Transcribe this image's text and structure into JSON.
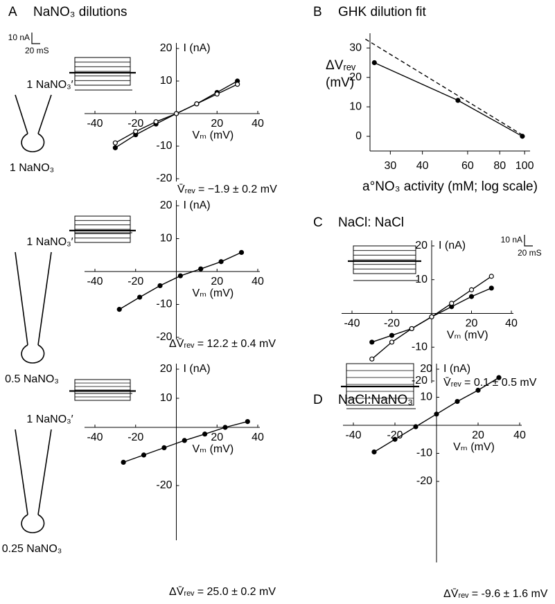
{
  "chart_data": [
    {
      "type": "line",
      "panel": "A",
      "title": "NaNO₃ dilutions",
      "scale_bar": [
        "10 nA",
        "20 mS"
      ],
      "labels": [
        "1 NaNO₃′",
        "1 NaNO₃"
      ],
      "xlabel": "Vₘ (mV)",
      "ylabel": "I (nA)",
      "annotation": "V̄ᵣₑᵥ = −1.9 ± 0.2 mV",
      "xlim": [
        -40,
        40
      ],
      "ylim": [
        -20,
        20
      ],
      "xticks": [
        -40,
        -20,
        20,
        40
      ],
      "yticks": [
        20,
        10,
        -10,
        -20
      ],
      "series": [
        {
          "marker": "filled",
          "color": "#000000",
          "x": [
            -30,
            -20,
            -10,
            0,
            10,
            20,
            30
          ],
          "values": [
            -10.5,
            -6.5,
            -3.2,
            0,
            3,
            6.5,
            10
          ]
        },
        {
          "marker": "open",
          "color": "#000000",
          "x": [
            -30,
            -20,
            -10,
            0,
            10,
            20,
            30
          ],
          "values": [
            -9,
            -5.5,
            -2.5,
            0,
            3,
            6,
            9
          ]
        }
      ]
    },
    {
      "type": "line",
      "labels": [
        "1 NaNO₃′",
        "0.5 NaNO₃"
      ],
      "xlabel": "Vₘ (mV)",
      "ylabel": "I (nA)",
      "annotation": "ΔV̄ᵣₑᵥ = 12.2 ± 0.4 mV",
      "xlim": [
        -40,
        40
      ],
      "ylim": [
        -20,
        20
      ],
      "xticks": [
        -40,
        -20,
        20,
        40
      ],
      "yticks": [
        20,
        10,
        -10,
        -20
      ],
      "series": [
        {
          "marker": "filled",
          "color": "#000000",
          "x": [
            -28,
            -18,
            -8,
            2,
            12,
            22,
            32
          ],
          "values": [
            -11.5,
            -7.8,
            -4.3,
            -1.3,
            0.8,
            3,
            5.8
          ]
        }
      ]
    },
    {
      "type": "line",
      "labels": [
        "1 NaNO₃′",
        "0.25 NaNO₃"
      ],
      "xlabel": "Vₘ (mV)",
      "ylabel": "I (nA)",
      "annotation": "ΔV̄ᵣₑᵥ = 25.0 ± 0.2 mV",
      "xlim": [
        -40,
        40
      ],
      "ylim": [
        -20,
        20
      ],
      "xticks": [
        -40,
        -20,
        20,
        40
      ],
      "yticks": [
        20,
        10,
        -20
      ],
      "series": [
        {
          "marker": "filled",
          "color": "#000000",
          "x": [
            -26,
            -16,
            -6,
            4,
            14,
            24,
            35
          ],
          "values": [
            -12,
            -9.5,
            -7,
            -4.5,
            -2.3,
            0,
            2
          ]
        }
      ]
    },
    {
      "type": "line",
      "panel": "B",
      "title": "GHK dilution fit",
      "frame": "box",
      "xlog": true,
      "xlabel": "a°NO₃ activity (mM; log scale)",
      "ylabel": [
        "ΔVᵣₑᵥ",
        "(mV)"
      ],
      "xlim": [
        25,
        105
      ],
      "ylim": [
        -5,
        35
      ],
      "xticks": [
        30,
        40,
        60,
        80,
        100
      ],
      "yticks": [
        0,
        10,
        20,
        30
      ],
      "series": [
        {
          "marker": "filled",
          "color": "#000000",
          "x": [
            26,
            55,
            98
          ],
          "values": [
            25,
            12.2,
            0
          ]
        },
        {
          "marker": "none",
          "dashed": true,
          "color": "#000000",
          "x": [
            24,
            100
          ],
          "values": [
            33,
            0
          ]
        }
      ]
    },
    {
      "type": "line",
      "panel": "C",
      "title": "NaCl: NaCl",
      "scale_bar": [
        "10 nA",
        "20 mS"
      ],
      "xlabel": "Vₘ (mV)",
      "ylabel": "I (nA)",
      "annotation": "V̄ᵣₑᵥ = 0.1 ± 0.5 mV",
      "xlim": [
        -40,
        40
      ],
      "ylim": [
        -20,
        20
      ],
      "xticks": [
        -40,
        -20,
        20,
        40
      ],
      "yticks": [
        20,
        10,
        -10,
        -20
      ],
      "series": [
        {
          "marker": "filled",
          "color": "#000000",
          "x": [
            -30,
            -20,
            -10,
            0,
            10,
            20,
            30
          ],
          "values": [
            -8.5,
            -6.5,
            -4.5,
            -1,
            2,
            5,
            7.5
          ]
        },
        {
          "marker": "open",
          "color": "#000000",
          "x": [
            -30,
            -20,
            -10,
            0,
            10,
            20,
            30
          ],
          "values": [
            -13.5,
            -8.5,
            -4.5,
            -1,
            3,
            7,
            11
          ]
        }
      ]
    },
    {
      "type": "line",
      "panel": "D",
      "title": "NaCl:NaNO₃",
      "xlabel": "Vₘ (mV)",
      "ylabel": "I (nA)",
      "annotation": "ΔV̄ᵣₑᵥ = -9.6 ± 1.6 mV",
      "xlim": [
        -40,
        40
      ],
      "ylim": [
        -20,
        20
      ],
      "xticks": [
        -40,
        -20,
        20,
        40
      ],
      "yticks": [
        20,
        10,
        -10,
        -20
      ],
      "series": [
        {
          "marker": "filled",
          "color": "#000000",
          "x": [
            -30,
            -20,
            -10,
            0,
            10,
            20,
            30
          ],
          "values": [
            -9.5,
            -5,
            -0.5,
            4,
            8.5,
            12.5,
            17
          ]
        }
      ]
    }
  ]
}
